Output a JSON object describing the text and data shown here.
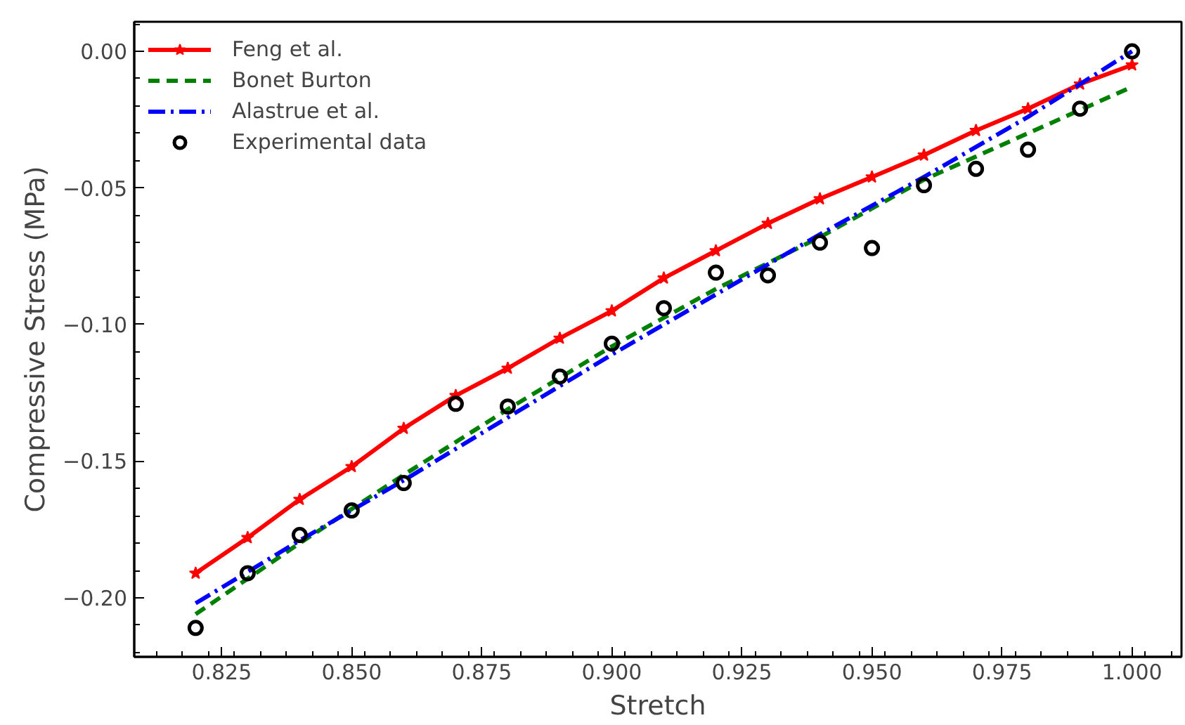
{
  "chart_data": {
    "type": "line",
    "xlabel": "Stretch",
    "ylabel": "Compressive Stress (MPa)",
    "xlim": [
      0.8082,
      1.0095
    ],
    "ylim": [
      -0.2216,
      0.0108
    ],
    "xticks": [
      0.825,
      {
        "value": 0.85,
        "label": "0.850"
      },
      0.875,
      {
        "value": 0.9,
        "label": "0.900"
      },
      0.925,
      {
        "value": 0.95,
        "label": "0.950"
      },
      0.975,
      {
        "value": 1.0,
        "label": "1.000"
      }
    ],
    "yticks": [
      {
        "value": -0.2,
        "label": "−0.20"
      },
      {
        "value": -0.15,
        "label": "−0.15"
      },
      {
        "value": -0.1,
        "label": "−0.10"
      },
      {
        "value": -0.05,
        "label": "−0.05"
      },
      {
        "value": 0.0,
        "label": "0.00"
      }
    ],
    "grid": false,
    "legend": "top left",
    "series": [
      {
        "name": "Feng et al.",
        "color": "#ff0000",
        "marker": "star",
        "line_style": "solid",
        "x": [
          0.82,
          0.83,
          0.84,
          0.85,
          0.86,
          0.87,
          0.88,
          0.89,
          0.9,
          0.91,
          0.92,
          0.93,
          0.94,
          0.95,
          0.96,
          0.97,
          0.98,
          0.99,
          1.0
        ],
        "values": [
          -0.191,
          -0.178,
          -0.164,
          -0.152,
          -0.138,
          -0.126,
          -0.116,
          -0.105,
          -0.095,
          -0.083,
          -0.073,
          -0.063,
          -0.054,
          -0.046,
          -0.038,
          -0.029,
          -0.021,
          -0.012,
          -0.005
        ]
      },
      {
        "name": "Bonet Burton",
        "color": "#008000",
        "marker": "none",
        "line_style": "dashed",
        "x": [
          0.82,
          0.84,
          0.86,
          0.88,
          0.9,
          0.92,
          0.94,
          0.96,
          0.98,
          1.0
        ],
        "values": [
          -0.206,
          -0.18,
          -0.155,
          -0.131,
          -0.108,
          -0.087,
          -0.068,
          -0.047,
          -0.03,
          -0.013
        ]
      },
      {
        "name": "Alastrue et al.",
        "color": "#0000ff",
        "marker": "none",
        "line_style": "dashdot",
        "x": [
          0.82,
          0.84,
          0.86,
          0.88,
          0.9,
          0.92,
          0.94,
          0.96,
          0.98,
          1.0
        ],
        "values": [
          -0.202,
          -0.179,
          -0.157,
          -0.134,
          -0.111,
          -0.089,
          -0.067,
          -0.046,
          -0.024,
          0.0
        ]
      },
      {
        "name": "Experimental data",
        "type": "scatter",
        "color": "#000000",
        "marker": "circle",
        "x": [
          0.82,
          0.83,
          0.84,
          0.85,
          0.86,
          0.87,
          0.88,
          0.89,
          0.9,
          0.91,
          0.92,
          0.93,
          0.94,
          0.95,
          0.96,
          0.97,
          0.98,
          0.99,
          1.0
        ],
        "values": [
          -0.211,
          -0.191,
          -0.177,
          -0.168,
          -0.158,
          -0.129,
          -0.13,
          -0.119,
          -0.107,
          -0.094,
          -0.081,
          -0.082,
          -0.07,
          -0.072,
          -0.049,
          -0.043,
          -0.036,
          -0.021,
          0.0
        ]
      }
    ]
  }
}
